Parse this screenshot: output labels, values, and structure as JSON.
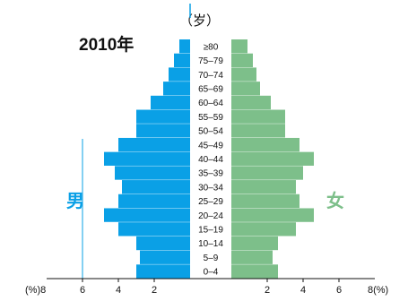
{
  "chart_data": {
    "type": "bar",
    "title": "2010年",
    "age_unit": "（岁）",
    "x_unit_left": "(%)8",
    "x_unit_right": "8(%)",
    "xlim": [
      0,
      8
    ],
    "x_ticks_left": [
      "6",
      "4",
      "2"
    ],
    "x_ticks_right": [
      "2",
      "4",
      "6"
    ],
    "categories": [
      "0–4",
      "5–9",
      "10–14",
      "15–19",
      "20–24",
      "25–29",
      "30–34",
      "35–39",
      "40–44",
      "45–49",
      "50–54",
      "55–59",
      "60–64",
      "65–69",
      "70–74",
      "75–79",
      "≥80"
    ],
    "series": [
      {
        "name": "男",
        "color": "#0aa0e6",
        "values": [
          3.0,
          2.8,
          3.0,
          4.0,
          4.8,
          4.0,
          3.8,
          4.2,
          4.8,
          4.0,
          3.0,
          3.0,
          2.2,
          1.5,
          1.2,
          0.9,
          0.6
        ]
      },
      {
        "name": "女",
        "color": "#7dbf8a",
        "values": [
          2.6,
          2.3,
          2.6,
          3.6,
          4.6,
          3.8,
          3.6,
          4.0,
          4.6,
          3.8,
          3.0,
          3.0,
          2.2,
          1.6,
          1.4,
          1.2,
          0.9
        ]
      }
    ],
    "grid": false
  }
}
